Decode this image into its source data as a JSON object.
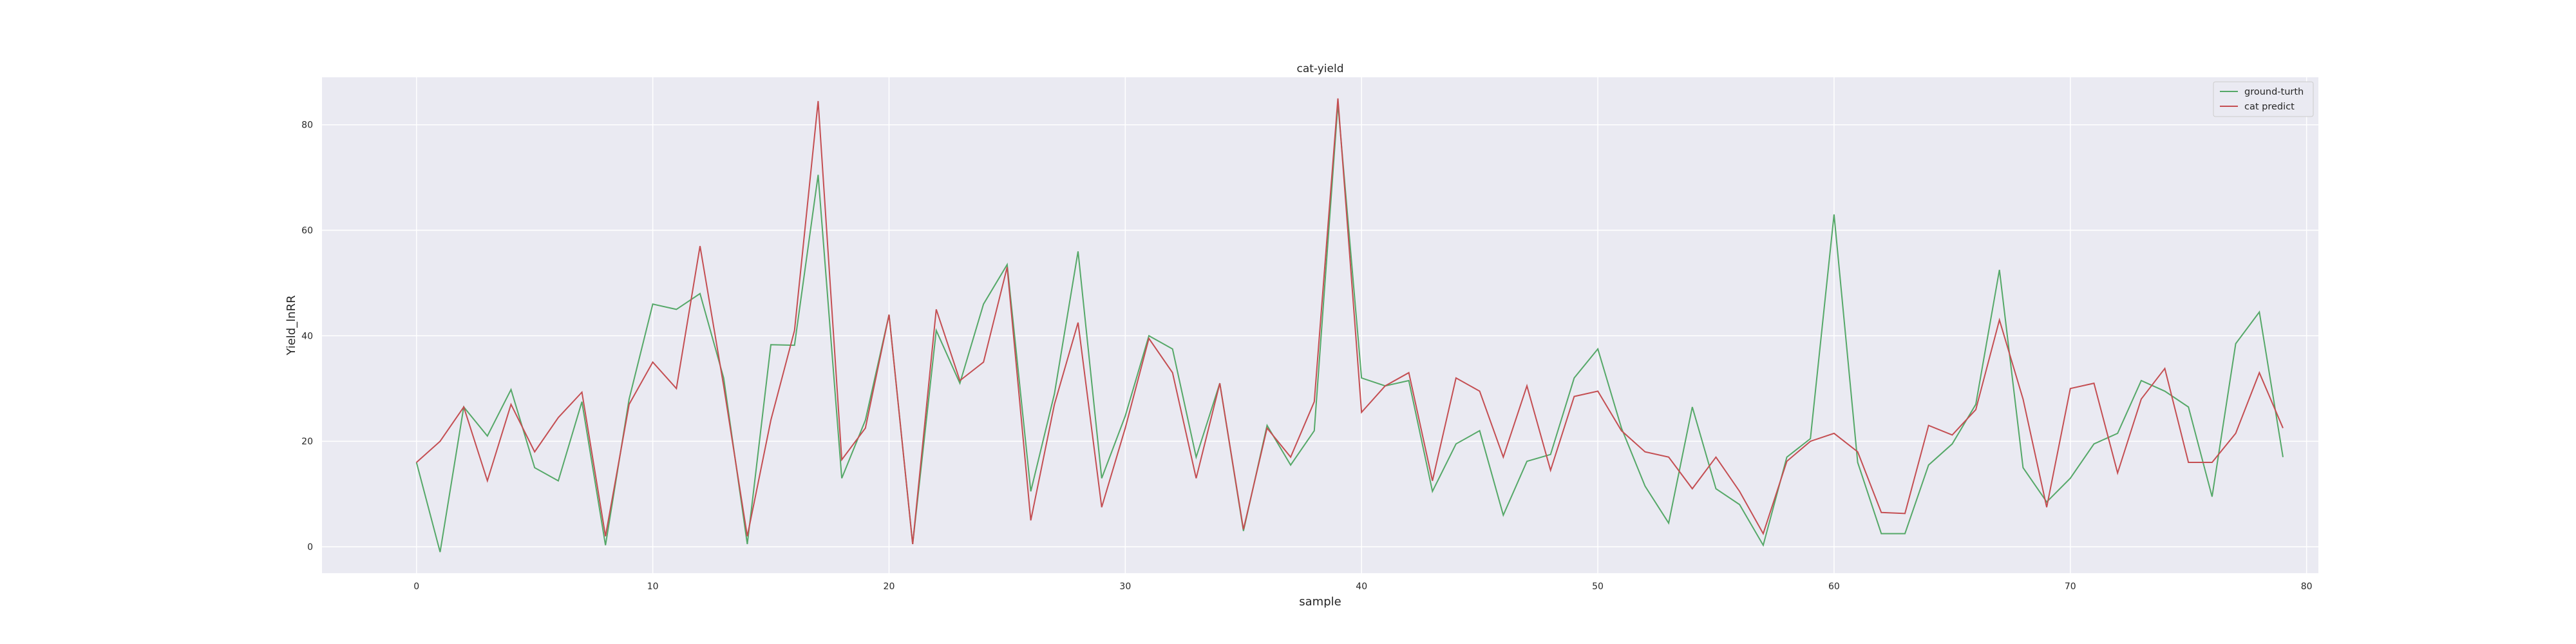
{
  "chart_data": {
    "type": "line",
    "title": "cat-yield",
    "xlabel": "sample",
    "ylabel": "Yield_lnRR",
    "xlim": [
      -4,
      80.5
    ],
    "ylim": [
      -5,
      89
    ],
    "xticks": [
      0,
      10,
      20,
      30,
      40,
      50,
      60,
      70,
      80
    ],
    "yticks": [
      0,
      20,
      40,
      60,
      80
    ],
    "grid": true,
    "legend_position": "top-right",
    "x": [
      0,
      1,
      2,
      3,
      4,
      5,
      6,
      7,
      8,
      9,
      10,
      11,
      12,
      13,
      14,
      15,
      16,
      17,
      18,
      19,
      20,
      21,
      22,
      23,
      24,
      25,
      26,
      27,
      28,
      29,
      30,
      31,
      32,
      33,
      34,
      35,
      36,
      37,
      38,
      39,
      40,
      41,
      42,
      43,
      44,
      45,
      46,
      47,
      48,
      49,
      50,
      51,
      52,
      53,
      54,
      55,
      56,
      57,
      58,
      59,
      60,
      61,
      62,
      63,
      64,
      65,
      66,
      67,
      68,
      69,
      70,
      71,
      72,
      73,
      74,
      75,
      76,
      77,
      78,
      79
    ],
    "series": [
      {
        "name": "ground-turth",
        "color": "#55a868",
        "values": [
          16,
          -1,
          26.5,
          21,
          29.8,
          15,
          12.5,
          27.5,
          0.3,
          28,
          46,
          45,
          48,
          32,
          0.5,
          38.3,
          38.2,
          70.5,
          13,
          24,
          44,
          0.5,
          41,
          31,
          46,
          53.5,
          10.5,
          29,
          56,
          13,
          24.8,
          40,
          37.5,
          17,
          31,
          3,
          23,
          15.5,
          22,
          84,
          32,
          30.5,
          31.5,
          10.5,
          19.5,
          22,
          6,
          16.2,
          17.5,
          32,
          37.5,
          22.5,
          11.5,
          4.5,
          26.5,
          11,
          8,
          0.3,
          17,
          20.5,
          63,
          16,
          2.5,
          2.5,
          15.5,
          19.5,
          27,
          52.5,
          15,
          8.5,
          13,
          19.5,
          21.5,
          31.5,
          29.5,
          26.5,
          9.5,
          38.5,
          44.5,
          17
        ]
      },
      {
        "name": "cat predict",
        "color": "#c44e52",
        "values": [
          16,
          20,
          26.5,
          12.5,
          27,
          18,
          24.5,
          29.3,
          2,
          27,
          35,
          30,
          57,
          30.5,
          2,
          24,
          41,
          84.5,
          16.5,
          22.5,
          44,
          0.5,
          45,
          31.5,
          35,
          53,
          5,
          27,
          42.5,
          7.5,
          22.5,
          39.5,
          33,
          13,
          31,
          3.3,
          22.5,
          17,
          27.5,
          85,
          25.5,
          30.5,
          33,
          12.5,
          32,
          29.5,
          17,
          30.5,
          14.5,
          28.5,
          29.5,
          22,
          18,
          17,
          11,
          17,
          10.5,
          2.5,
          16.2,
          20,
          21.5,
          18,
          6.5,
          6.3,
          23,
          21.2,
          26,
          43,
          28,
          7.5,
          30,
          31,
          14,
          28,
          33.8,
          16,
          16,
          21.5,
          33,
          22.5
        ]
      }
    ]
  }
}
